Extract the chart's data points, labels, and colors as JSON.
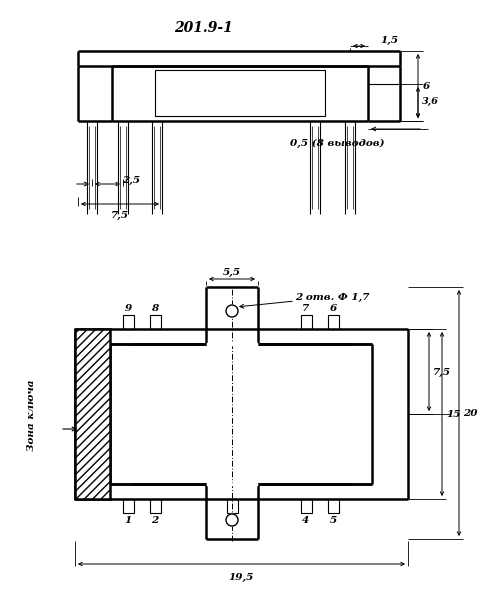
{
  "bg_color": "#ffffff",
  "line_color": "#000000",
  "annotations": {
    "top_title": "201.9-1",
    "dim_1_5": "1,5",
    "dim_6": "6",
    "dim_3_6": "3,6",
    "dim_0_5": "0,5 (8 выводов)",
    "dim_2_5": "2,5",
    "dim_7_5": "7,5",
    "dim_5_5": "5,5",
    "dim_2otv": "2 отв. Ф 1,7",
    "dim_7_5b": "7,5",
    "dim_15": "15",
    "dim_20": "20",
    "dim_19_5": "19,5",
    "zona_klucha": "Зона ключа"
  }
}
